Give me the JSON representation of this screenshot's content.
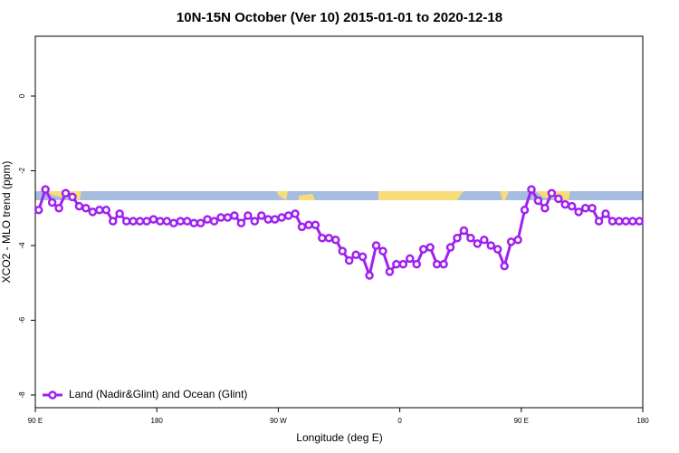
{
  "chart_data": {
    "type": "line",
    "title": "10N-15N October (Ver 10)   2015-01-01 to 2020-12-18",
    "xlabel": "Longitude (deg E)",
    "ylabel": "XCO2 - MLO trend (ppm)",
    "xlim": [
      90,
      540
    ],
    "ylim": [
      -8.34,
      1.6
    ],
    "xticks": [
      {
        "value": 90,
        "label": "90 E"
      },
      180,
      {
        "value": 270,
        "label": "90 W"
      },
      {
        "value": 360,
        "label": "0"
      },
      {
        "value": 450,
        "label": "90 E"
      },
      {
        "value": 540,
        "label": "180"
      }
    ],
    "yticks": [
      0,
      -2,
      -4,
      -6,
      -8
    ],
    "legend": "bottomleft",
    "x": [
      92.5,
      97.5,
      102.5,
      107.5,
      112.5,
      117.5,
      122.5,
      127.5,
      132.5,
      137.5,
      142.5,
      147.5,
      152.5,
      157.5,
      162.5,
      167.5,
      172.5,
      177.5,
      182.5,
      187.5,
      192.5,
      197.5,
      202.5,
      207.5,
      212.5,
      217.5,
      222.5,
      227.5,
      232.5,
      237.5,
      242.5,
      247.5,
      252.5,
      257.5,
      262.5,
      267.5,
      272.5,
      277.5,
      282.5,
      287.5,
      292.5,
      297.5,
      302.5,
      307.5,
      312.5,
      317.5,
      322.5,
      327.5,
      332.5,
      337.5,
      342.5,
      347.5,
      352.5,
      357.5,
      362.5,
      367.5,
      372.5,
      377.5,
      382.5,
      387.5,
      392.5,
      397.5,
      402.5,
      407.5,
      412.5,
      417.5,
      422.5,
      427.5,
      432.5,
      437.5,
      442.5,
      447.5,
      452.5,
      457.5,
      462.5,
      467.5,
      472.5,
      477.5,
      482.5,
      487.5,
      492.5,
      497.5,
      502.5,
      507.5,
      512.5,
      517.5,
      522.5,
      527.5,
      532.5,
      537.5
    ],
    "series": [
      {
        "name": "Land (Nadir&Glint) and Ocean (Glint)",
        "color": "#a020f0",
        "values": [
          -3.05,
          -2.5,
          -2.85,
          -3.0,
          -2.6,
          -2.7,
          -2.95,
          -3.0,
          -3.1,
          -3.05,
          -3.05,
          -3.35,
          -3.15,
          -3.35,
          -3.35,
          -3.35,
          -3.35,
          -3.3,
          -3.35,
          -3.35,
          -3.4,
          -3.35,
          -3.35,
          -3.4,
          -3.4,
          -3.3,
          -3.35,
          -3.25,
          -3.25,
          -3.2,
          -3.4,
          -3.2,
          -3.35,
          -3.2,
          -3.3,
          -3.3,
          -3.25,
          -3.2,
          -3.15,
          -3.5,
          -3.45,
          -3.45,
          -3.8,
          -3.8,
          -3.85,
          -4.15,
          -4.4,
          -4.25,
          -4.3,
          -4.8,
          -4.0,
          -4.15,
          -4.7,
          -4.5,
          -4.5,
          -4.35,
          -4.5,
          -4.1,
          -4.05,
          -4.5,
          -4.5,
          -4.05,
          -3.8,
          -3.6,
          -3.8,
          -3.95,
          -3.85,
          -4.0,
          -4.1,
          -4.55,
          -3.9,
          -3.85,
          -3.05,
          -2.5,
          -2.8,
          -3.0,
          -2.6,
          -2.75,
          -2.9,
          -2.95,
          -3.1,
          -3.0,
          -3.0,
          -3.35,
          -3.15,
          -3.35,
          -3.35,
          -3.35,
          -3.35,
          -3.35
        ]
      }
    ]
  }
}
